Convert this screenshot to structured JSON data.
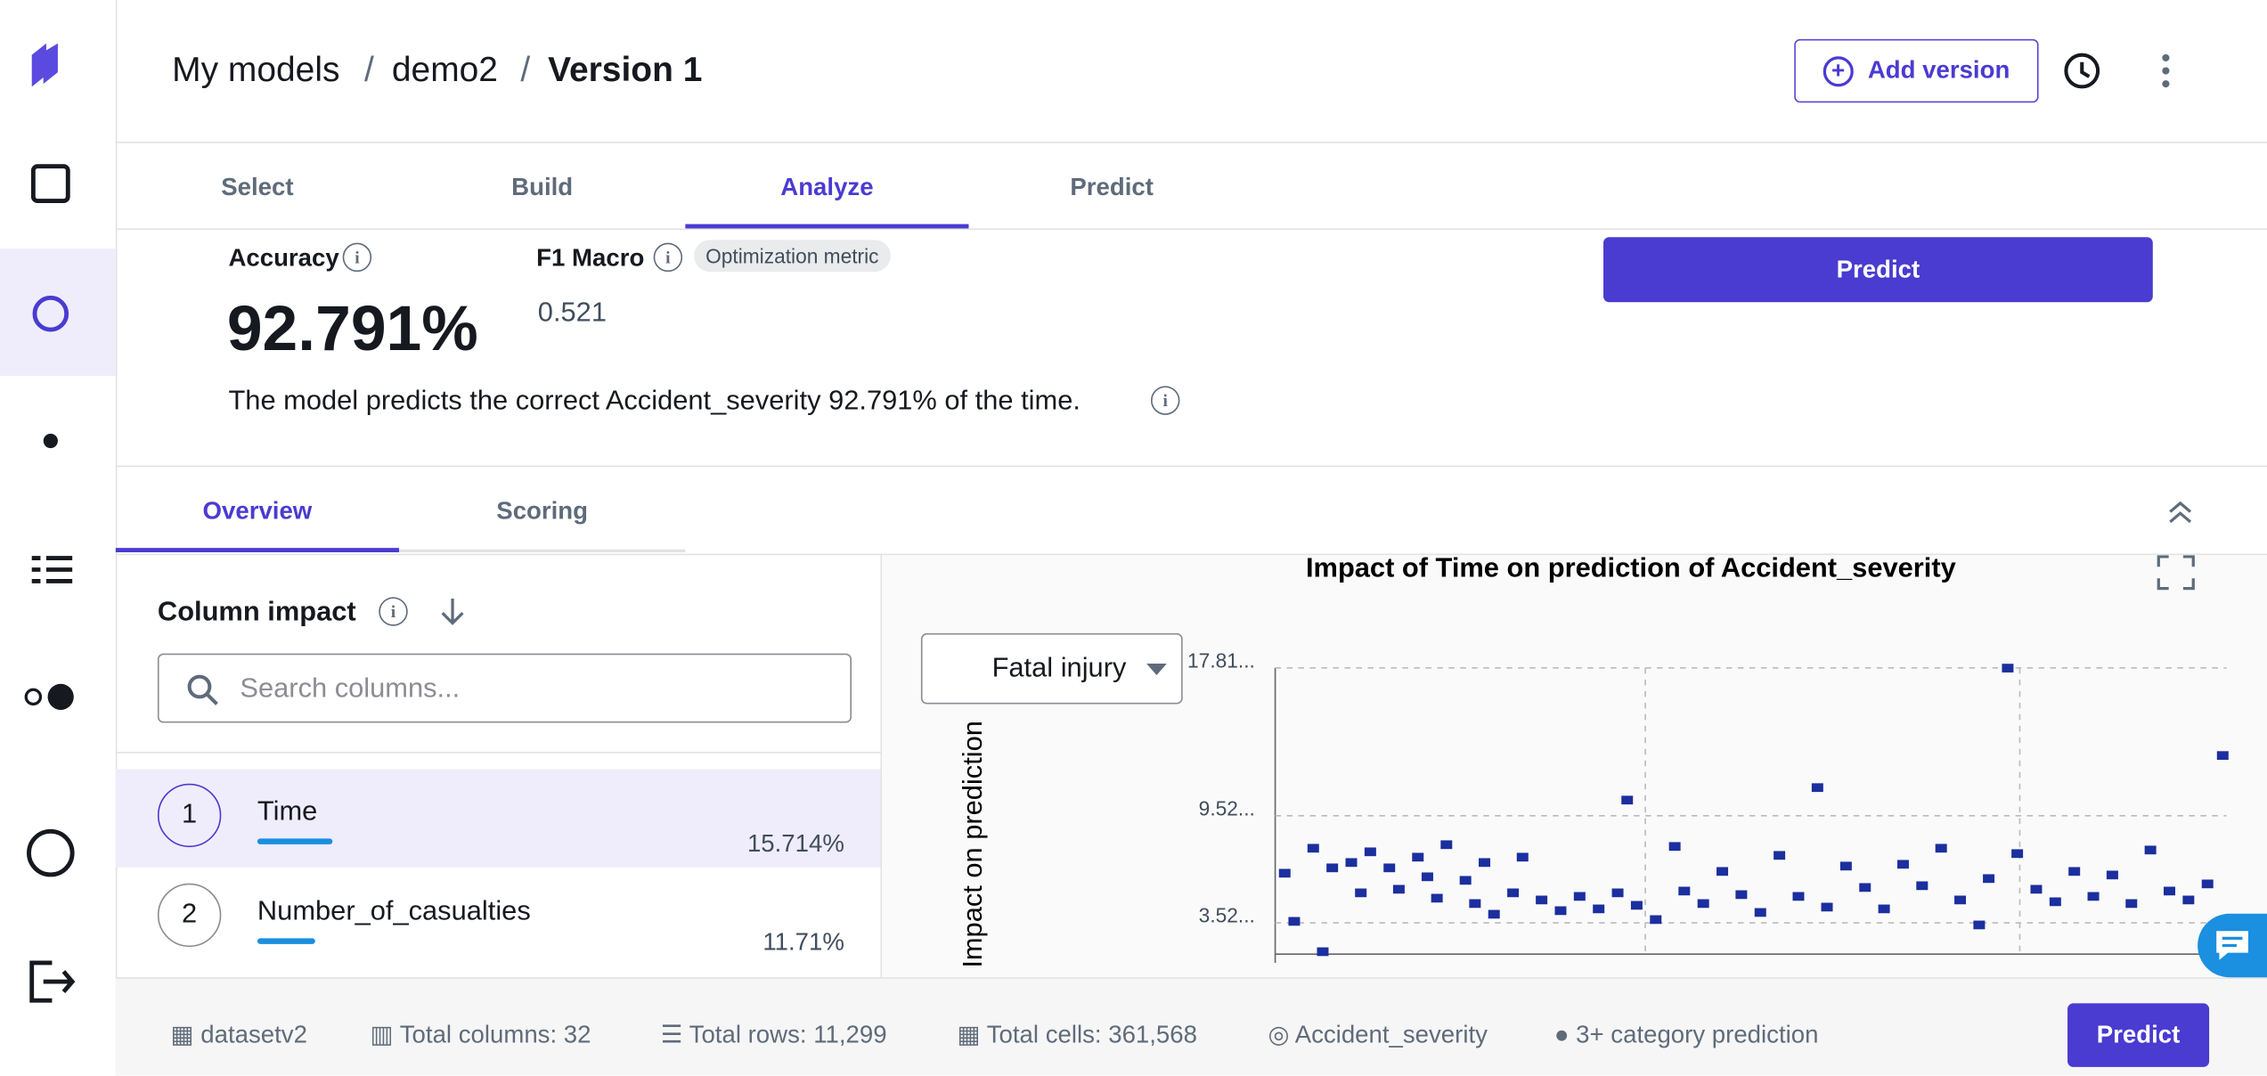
{
  "header": {
    "breadcrumb": [
      "My models",
      "demo2",
      "Version 1"
    ],
    "add_version": "Add version"
  },
  "tabs": [
    "Select",
    "Build",
    "Analyze",
    "Predict"
  ],
  "metrics": {
    "accuracy_label": "Accuracy",
    "accuracy_value": "92.791%",
    "f1_label": "F1 Macro",
    "f1_badge": "Optimization metric",
    "f1_value": "0.521",
    "sentence": "The model predicts the correct Accident_severity 92.791% of the time.",
    "predict_button": "Predict"
  },
  "subtabs": [
    "Overview",
    "Scoring"
  ],
  "column_impact": {
    "title": "Column impact",
    "search_placeholder": "Search columns...",
    "rows": [
      {
        "rank": "1",
        "name": "Time",
        "impact": "15.714%"
      },
      {
        "rank": "2",
        "name": "Number_of_casualties",
        "impact": "11.71%"
      }
    ]
  },
  "dropdown": "Fatal injury",
  "footer": {
    "items": [
      "datasetv2",
      "Total columns: 32",
      "Total rows: 11,299",
      "Total cells: 361,568",
      "Accident_severity",
      "3+ category prediction"
    ],
    "predict_button": "Predict"
  },
  "chart_data": {
    "type": "scatter",
    "title": "Impact of Time on prediction of Accident_severity",
    "y_label": "Impact on prediction",
    "color": "#1b2f9e",
    "grid": true,
    "xlim": [
      0,
      100
    ],
    "ylim": [
      1.76,
      17.81
    ],
    "yticks": [
      {
        "value": 17.81,
        "label": "17.81..."
      },
      {
        "value": 9.52,
        "label": "9.52..."
      },
      {
        "value": 3.52,
        "label": "3.52..."
      }
    ],
    "x": [
      1,
      2,
      4,
      5,
      6,
      8,
      9,
      10,
      12,
      13,
      15,
      16,
      17,
      18,
      20,
      21,
      22,
      23,
      25,
      26,
      28,
      30,
      32,
      34,
      36,
      37,
      38,
      40,
      42,
      43,
      45,
      47,
      49,
      51,
      53,
      55,
      57,
      58,
      60,
      62,
      64,
      66,
      68,
      70,
      72,
      74,
      75,
      77,
      78,
      80,
      82,
      84,
      86,
      88,
      90,
      92,
      94,
      96,
      98,
      99.6
    ],
    "values": [
      6.3,
      3.6,
      7.7,
      1.9,
      6.6,
      6.9,
      5.2,
      7.5,
      6.6,
      5.4,
      7.2,
      6.1,
      4.9,
      7.9,
      5.9,
      4.6,
      6.9,
      4.0,
      5.2,
      7.2,
      4.8,
      4.2,
      5.0,
      4.3,
      5.2,
      10.4,
      4.5,
      3.7,
      7.8,
      5.3,
      4.6,
      6.4,
      5.1,
      4.1,
      7.3,
      5.0,
      11.1,
      4.4,
      6.7,
      5.5,
      4.3,
      6.8,
      5.6,
      7.7,
      4.8,
      3.4,
      6.0,
      17.8,
      7.4,
      5.4,
      4.7,
      6.4,
      5.0,
      6.2,
      4.6,
      7.6,
      5.3,
      4.8,
      5.7,
      12.9
    ]
  }
}
